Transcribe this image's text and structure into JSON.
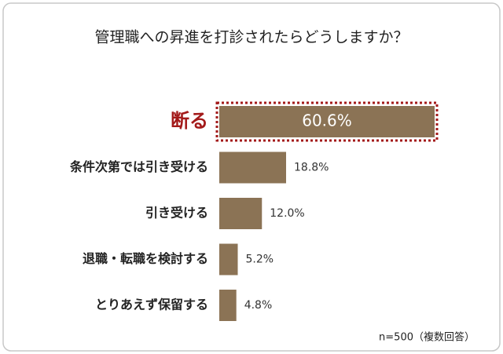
{
  "chart_data": {
    "type": "barh",
    "title": "管理職への昇進を打診されたらどうしますか？",
    "categories": [
      "断る",
      "条件次第では引き受ける",
      "引き受ける",
      "退職・転職を検討する",
      "とりあえず保留する"
    ],
    "values": [
      60.6,
      18.8,
      12.0,
      5.2,
      4.8
    ],
    "value_labels": [
      "60.6%",
      "18.8%",
      "12.0%",
      "5.2%",
      "4.8%"
    ],
    "color": "#8b7355",
    "highlight_color": "#a31a1a",
    "note": "n=500（複数回答）"
  }
}
